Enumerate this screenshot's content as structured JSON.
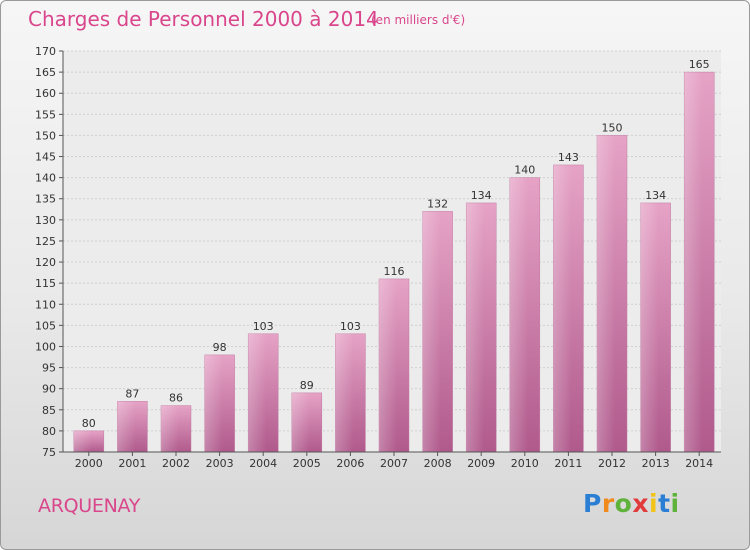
{
  "header": {
    "title": "Charges de Personnel 2000 à 2014",
    "subtitle": "(en milliers d'€)"
  },
  "footer": {
    "town": "ARQUENAY",
    "logo_text": "Proxiti"
  },
  "colors": {
    "accent": "#d9468c",
    "bar_top": "#e6a3c6",
    "bar_bottom": "#b05a8c"
  },
  "chart_data": {
    "type": "bar",
    "title": "Charges de Personnel 2000 à 2014",
    "subtitle": "(en milliers d'€)",
    "xlabel": "",
    "ylabel": "",
    "categories": [
      "2000",
      "2001",
      "2002",
      "2003",
      "2004",
      "2005",
      "2006",
      "2007",
      "2008",
      "2009",
      "2010",
      "2011",
      "2012",
      "2013",
      "2014"
    ],
    "values": [
      80,
      87,
      86,
      98,
      103,
      89,
      103,
      116,
      132,
      134,
      140,
      143,
      150,
      134,
      165
    ],
    "ylim": [
      75,
      170
    ],
    "yticks": [
      75,
      80,
      85,
      90,
      95,
      100,
      105,
      110,
      115,
      120,
      125,
      130,
      135,
      140,
      145,
      150,
      155,
      160,
      165,
      170
    ],
    "grid": true,
    "legend": "none"
  }
}
